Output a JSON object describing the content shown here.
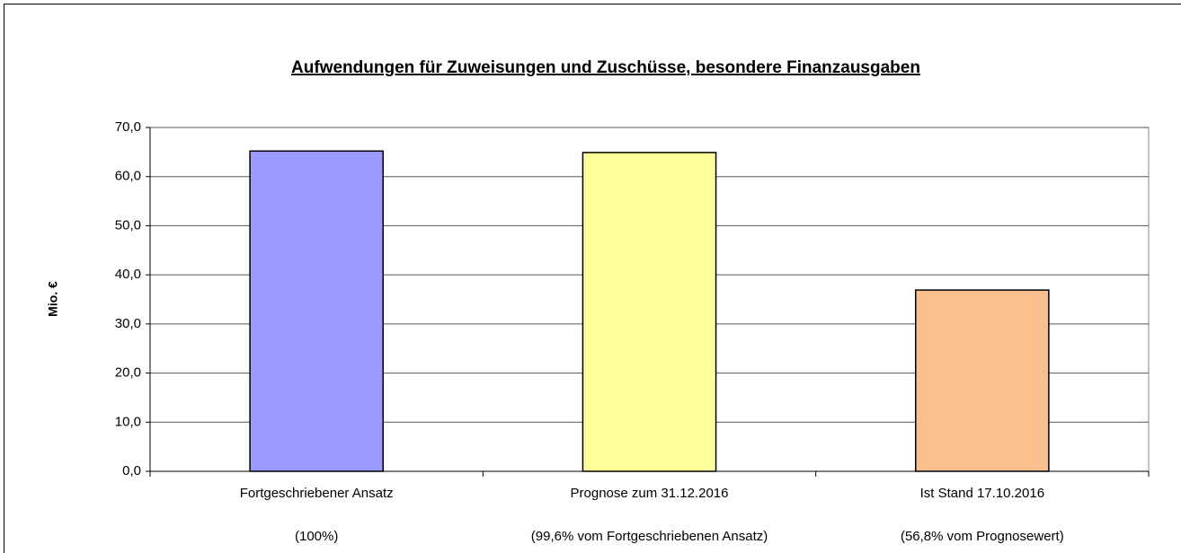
{
  "chart_data": {
    "type": "bar",
    "title": "Aufwendungen für Zuweisungen und Zuschüsse, besondere Finanzausgaben",
    "y_label": "Mio. €",
    "categories": [
      "Fortgeschriebener Ansatz",
      "Prognose zum 31.12.2016",
      "Ist Stand 17.10.2016"
    ],
    "category_notes": [
      "(100%)",
      "(99,6% vom Fortgeschriebenen Ansatz)",
      "(56,8% vom Prognosewert)"
    ],
    "values": [
      65.2,
      64.9,
      36.9
    ],
    "colors": [
      "#9999ff",
      "#ffff99",
      "#f9bf8f"
    ],
    "ylim": [
      0,
      70
    ],
    "yticks": [
      {
        "value": 0,
        "label": "0,0"
      },
      {
        "value": 10,
        "label": "10,0"
      },
      {
        "value": 20,
        "label": "20,0"
      },
      {
        "value": 30,
        "label": "30,0"
      },
      {
        "value": 40,
        "label": "40,0"
      },
      {
        "value": 50,
        "label": "50,0"
      },
      {
        "value": 60,
        "label": "60,0"
      },
      {
        "value": 70,
        "label": "70,0"
      }
    ],
    "grid": true
  }
}
